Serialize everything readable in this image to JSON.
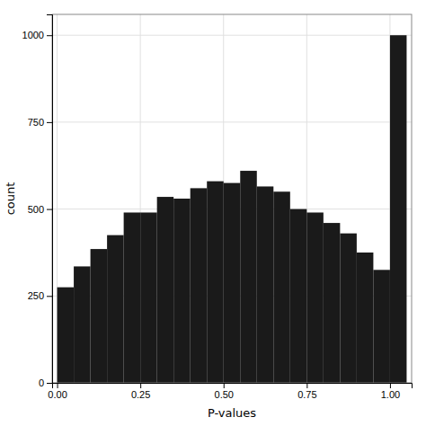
{
  "chart_data": {
    "type": "histogram",
    "xlabel": "P-values",
    "ylabel": "count",
    "bins": [
      0,
      0.05,
      0.1,
      0.15,
      0.2,
      0.25,
      0.3,
      0.35,
      0.4,
      0.45,
      0.5,
      0.55,
      0.6,
      0.65,
      0.7,
      0.75,
      0.8,
      0.85,
      0.9,
      0.95,
      1,
      1.05
    ],
    "values": [
      275,
      335,
      385,
      425,
      490,
      490,
      535,
      530,
      560,
      580,
      575,
      610,
      565,
      550,
      500,
      490,
      460,
      430,
      375,
      325,
      1000
    ],
    "color": "#1a1a1a",
    "xlim": [
      -0.015,
      1.065
    ],
    "ylim": [
      0,
      1060
    ],
    "xticks": [
      {
        "value": 0,
        "label": "0.00"
      },
      0.25,
      {
        "value": 0.5,
        "label": "0.50"
      },
      0.75,
      {
        "value": 1,
        "label": "1.00"
      }
    ],
    "yticks": [
      0,
      250,
      500,
      750,
      1000
    ],
    "grid": true
  }
}
